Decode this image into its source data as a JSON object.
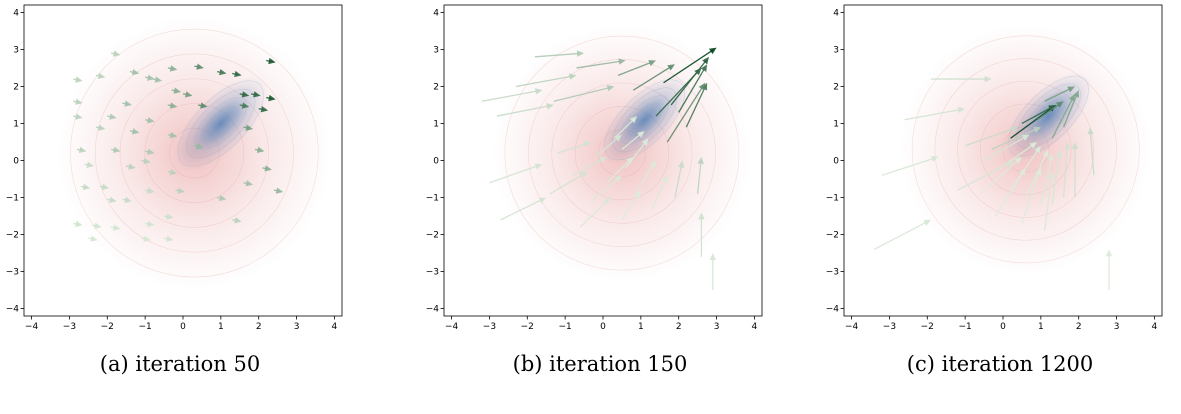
{
  "chart_data": [
    {
      "type": "quiver",
      "caption": "(a) iteration 50",
      "xlim": [
        -4.2,
        4.2
      ],
      "ylim": [
        -4.2,
        4.2
      ],
      "xticks": [
        -4,
        -3,
        -2,
        -1,
        0,
        1,
        2,
        3,
        4
      ],
      "yticks": [
        -4,
        -3,
        -2,
        -1,
        0,
        1,
        2,
        3,
        4
      ],
      "grid": false,
      "densities": [
        {
          "name": "",
          "color": "#e07a7a",
          "mean": [
            0.3,
            0.2
          ],
          "spread": 3.6
        },
        {
          "name": "",
          "color": "#3a73b0",
          "mean": [
            1.0,
            1.0
          ],
          "spread": 1.6
        }
      ],
      "arrows": [
        {
          "x": -1.9,
          "y": 2.9,
          "dx": 0.25,
          "dy": -0.05,
          "w": 0.2
        },
        {
          "x": -2.9,
          "y": 2.2,
          "dx": 0.25,
          "dy": -0.05,
          "w": 0.2
        },
        {
          "x": -2.3,
          "y": 2.3,
          "dx": 0.25,
          "dy": -0.05,
          "w": 0.2
        },
        {
          "x": -1.4,
          "y": 2.4,
          "dx": 0.25,
          "dy": -0.05,
          "w": 0.3
        },
        {
          "x": -1.0,
          "y": 2.25,
          "dx": 0.25,
          "dy": -0.05,
          "w": 0.3
        },
        {
          "x": -0.8,
          "y": 2.2,
          "dx": 0.25,
          "dy": -0.05,
          "w": 0.3
        },
        {
          "x": -0.4,
          "y": 2.5,
          "dx": 0.25,
          "dy": -0.05,
          "w": 0.4
        },
        {
          "x": 0.3,
          "y": 2.55,
          "dx": 0.25,
          "dy": -0.05,
          "w": 0.6
        },
        {
          "x": 0.9,
          "y": 2.4,
          "dx": 0.25,
          "dy": -0.05,
          "w": 0.7
        },
        {
          "x": 1.3,
          "y": 2.35,
          "dx": 0.25,
          "dy": -0.05,
          "w": 0.8
        },
        {
          "x": 2.2,
          "y": 2.7,
          "dx": 0.25,
          "dy": -0.05,
          "w": 0.9
        },
        {
          "x": -0.3,
          "y": 1.9,
          "dx": 0.25,
          "dy": -0.05,
          "w": 0.4
        },
        {
          "x": 0.0,
          "y": 1.8,
          "dx": 0.25,
          "dy": -0.05,
          "w": 0.5
        },
        {
          "x": 1.5,
          "y": 1.8,
          "dx": 0.25,
          "dy": -0.05,
          "w": 0.8
        },
        {
          "x": 1.8,
          "y": 1.8,
          "dx": 0.25,
          "dy": -0.05,
          "w": 0.8
        },
        {
          "x": 2.2,
          "y": 1.7,
          "dx": 0.25,
          "dy": -0.05,
          "w": 0.9
        },
        {
          "x": -2.9,
          "y": 1.6,
          "dx": 0.25,
          "dy": -0.05,
          "w": 0.2
        },
        {
          "x": -1.6,
          "y": 1.55,
          "dx": 0.25,
          "dy": -0.05,
          "w": 0.3
        },
        {
          "x": -0.4,
          "y": 1.5,
          "dx": 0.25,
          "dy": -0.05,
          "w": 0.4
        },
        {
          "x": 0.4,
          "y": 1.5,
          "dx": 0.25,
          "dy": -0.05,
          "w": 0.6
        },
        {
          "x": 1.5,
          "y": 1.5,
          "dx": 0.25,
          "dy": -0.05,
          "w": 0.7
        },
        {
          "x": 2.0,
          "y": 1.4,
          "dx": 0.25,
          "dy": -0.05,
          "w": 0.8
        },
        {
          "x": -2.9,
          "y": 1.2,
          "dx": 0.25,
          "dy": -0.05,
          "w": 0.2
        },
        {
          "x": -2.0,
          "y": 1.2,
          "dx": 0.25,
          "dy": -0.05,
          "w": 0.25
        },
        {
          "x": -1.0,
          "y": 1.1,
          "dx": 0.25,
          "dy": -0.05,
          "w": 0.3
        },
        {
          "x": -2.3,
          "y": 0.9,
          "dx": 0.25,
          "dy": -0.05,
          "w": 0.2
        },
        {
          "x": -1.4,
          "y": 0.8,
          "dx": 0.25,
          "dy": -0.05,
          "w": 0.3
        },
        {
          "x": -0.4,
          "y": 0.7,
          "dx": 0.25,
          "dy": -0.05,
          "w": 0.3
        },
        {
          "x": 1.6,
          "y": 0.9,
          "dx": 0.25,
          "dy": -0.05,
          "w": 0.5
        },
        {
          "x": -2.8,
          "y": 0.3,
          "dx": 0.25,
          "dy": -0.05,
          "w": 0.2
        },
        {
          "x": -1.9,
          "y": 0.3,
          "dx": 0.25,
          "dy": -0.05,
          "w": 0.25
        },
        {
          "x": -1.0,
          "y": 0.25,
          "dx": 0.25,
          "dy": -0.05,
          "w": 0.25
        },
        {
          "x": 0.3,
          "y": 0.4,
          "dx": 0.25,
          "dy": -0.05,
          "w": 0.35
        },
        {
          "x": 1.9,
          "y": 0.3,
          "dx": 0.25,
          "dy": -0.05,
          "w": 0.4
        },
        {
          "x": -2.6,
          "y": -0.1,
          "dx": 0.25,
          "dy": -0.05,
          "w": 0.15
        },
        {
          "x": -1.5,
          "y": -0.15,
          "dx": 0.25,
          "dy": -0.05,
          "w": 0.2
        },
        {
          "x": -0.4,
          "y": -0.3,
          "dx": 0.25,
          "dy": -0.05,
          "w": 0.2
        },
        {
          "x": -1.1,
          "y": 0.0,
          "dx": 0.25,
          "dy": -0.05,
          "w": 0.2
        },
        {
          "x": 2.1,
          "y": -0.2,
          "dx": 0.25,
          "dy": -0.05,
          "w": 0.4
        },
        {
          "x": 2.4,
          "y": -0.8,
          "dx": 0.25,
          "dy": -0.05,
          "w": 0.35
        },
        {
          "x": -2.7,
          "y": -0.7,
          "dx": 0.25,
          "dy": -0.05,
          "w": 0.15
        },
        {
          "x": -2.2,
          "y": -0.7,
          "dx": 0.25,
          "dy": -0.05,
          "w": 0.15
        },
        {
          "x": -1.0,
          "y": -0.8,
          "dx": 0.25,
          "dy": -0.05,
          "w": 0.15
        },
        {
          "x": -2.0,
          "y": -1.05,
          "dx": 0.25,
          "dy": -0.05,
          "w": 0.15
        },
        {
          "x": -1.6,
          "y": -1.05,
          "dx": 0.25,
          "dy": -0.05,
          "w": 0.15
        },
        {
          "x": -0.2,
          "y": -0.8,
          "dx": 0.25,
          "dy": -0.05,
          "w": 0.2
        },
        {
          "x": 0.9,
          "y": -1.0,
          "dx": 0.25,
          "dy": -0.05,
          "w": 0.25
        },
        {
          "x": 1.6,
          "y": -0.6,
          "dx": 0.25,
          "dy": -0.05,
          "w": 0.3
        },
        {
          "x": -2.9,
          "y": -1.7,
          "dx": 0.25,
          "dy": -0.05,
          "w": 0.1
        },
        {
          "x": -2.4,
          "y": -1.75,
          "dx": 0.25,
          "dy": -0.05,
          "w": 0.1
        },
        {
          "x": -1.9,
          "y": -1.8,
          "dx": 0.25,
          "dy": -0.05,
          "w": 0.1
        },
        {
          "x": -1.0,
          "y": -1.7,
          "dx": 0.25,
          "dy": -0.05,
          "w": 0.1
        },
        {
          "x": -0.5,
          "y": -1.5,
          "dx": 0.25,
          "dy": -0.05,
          "w": 0.12
        },
        {
          "x": 1.3,
          "y": -1.6,
          "dx": 0.25,
          "dy": -0.05,
          "w": 0.2
        },
        {
          "x": -1.1,
          "y": -2.1,
          "dx": 0.25,
          "dy": -0.05,
          "w": 0.08
        },
        {
          "x": -0.5,
          "y": -2.1,
          "dx": 0.25,
          "dy": -0.05,
          "w": 0.1
        },
        {
          "x": -2.5,
          "y": -2.1,
          "dx": 0.25,
          "dy": -0.05,
          "w": 0.08
        }
      ]
    },
    {
      "type": "quiver",
      "caption": "(b) iteration 150",
      "xlim": [
        -4.2,
        4.2
      ],
      "ylim": [
        -4.2,
        4.2
      ],
      "xticks": [
        -4,
        -3,
        -2,
        -1,
        0,
        1,
        2,
        3,
        4
      ],
      "yticks": [
        -4,
        -3,
        -2,
        -1,
        0,
        1,
        2,
        3,
        4
      ],
      "grid": false,
      "densities": [
        {
          "name": "",
          "color": "#e07a7a",
          "mean": [
            0.5,
            0.2
          ],
          "spread": 3.4
        },
        {
          "name": "",
          "color": "#3a73b0",
          "mean": [
            1.1,
            1.1
          ],
          "spread": 1.5
        }
      ],
      "arrows": [
        {
          "x": 1.6,
          "y": 2.1,
          "dx": 1.4,
          "dy": 0.95,
          "w": 1.0
        },
        {
          "x": 1.8,
          "y": 1.5,
          "dx": 1.0,
          "dy": 1.3,
          "w": 0.85
        },
        {
          "x": 2.0,
          "y": 1.3,
          "dx": 0.75,
          "dy": 1.3,
          "w": 0.75
        },
        {
          "x": 1.4,
          "y": 1.2,
          "dx": 1.2,
          "dy": 1.3,
          "w": 0.8
        },
        {
          "x": 2.2,
          "y": 0.9,
          "dx": 0.55,
          "dy": 1.2,
          "w": 0.7
        },
        {
          "x": 1.7,
          "y": 0.5,
          "dx": 1.0,
          "dy": 1.6,
          "w": 0.6
        },
        {
          "x": 0.8,
          "y": 1.9,
          "dx": 1.1,
          "dy": 0.7,
          "w": 0.6
        },
        {
          "x": 0.4,
          "y": 2.3,
          "dx": 1.0,
          "dy": 0.4,
          "w": 0.5
        },
        {
          "x": -0.7,
          "y": 2.5,
          "dx": 1.3,
          "dy": 0.2,
          "w": 0.35
        },
        {
          "x": -1.8,
          "y": 2.8,
          "dx": 1.3,
          "dy": 0.1,
          "w": 0.25
        },
        {
          "x": -3.2,
          "y": 1.6,
          "dx": 1.6,
          "dy": 0.3,
          "w": 0.15
        },
        {
          "x": -2.3,
          "y": 2.0,
          "dx": 1.6,
          "dy": 0.3,
          "w": 0.2
        },
        {
          "x": -1.3,
          "y": 1.6,
          "dx": 1.6,
          "dy": 0.4,
          "w": 0.25
        },
        {
          "x": -2.8,
          "y": 1.2,
          "dx": 1.5,
          "dy": 0.3,
          "w": 0.15
        },
        {
          "x": 0.3,
          "y": 0.6,
          "dx": 0.6,
          "dy": 0.6,
          "w": 0.05
        },
        {
          "x": 0.5,
          "y": 0.3,
          "dx": 0.6,
          "dy": 0.5,
          "w": 0.05
        },
        {
          "x": -0.2,
          "y": 0.1,
          "dx": 0.7,
          "dy": 0.6,
          "w": 0.08
        },
        {
          "x": -1.2,
          "y": 0.2,
          "dx": 0.9,
          "dy": 0.3,
          "w": 0.1
        },
        {
          "x": 0.6,
          "y": -0.2,
          "dx": 0.6,
          "dy": 0.8,
          "w": 0.05
        },
        {
          "x": -0.8,
          "y": -0.4,
          "dx": 0.9,
          "dy": 0.5,
          "w": 0.08
        },
        {
          "x": 0.1,
          "y": -0.6,
          "dx": 0.7,
          "dy": 0.7,
          "w": 0.05
        },
        {
          "x": -1.4,
          "y": -0.9,
          "dx": 1.0,
          "dy": 0.6,
          "w": 0.1
        },
        {
          "x": -0.3,
          "y": -1.1,
          "dx": 0.8,
          "dy": 0.7,
          "w": 0.06
        },
        {
          "x": 0.9,
          "y": -0.8,
          "dx": 0.5,
          "dy": 0.8,
          "w": 0.05
        },
        {
          "x": 1.3,
          "y": -1.3,
          "dx": 0.4,
          "dy": 0.9,
          "w": 0.06
        },
        {
          "x": 0.5,
          "y": -1.6,
          "dx": 0.5,
          "dy": 0.8,
          "w": 0.05
        },
        {
          "x": -0.6,
          "y": -1.8,
          "dx": 0.8,
          "dy": 0.8,
          "w": 0.07
        },
        {
          "x": 1.9,
          "y": -1.0,
          "dx": 0.2,
          "dy": 1.0,
          "w": 0.15
        },
        {
          "x": 2.5,
          "y": -0.9,
          "dx": 0.1,
          "dy": 1.0,
          "w": 0.2
        },
        {
          "x": 2.6,
          "y": -2.6,
          "dx": 0.0,
          "dy": 1.2,
          "w": 0.12
        },
        {
          "x": 2.9,
          "y": -3.5,
          "dx": 0.0,
          "dy": 1.0,
          "w": 0.08
        },
        {
          "x": -2.7,
          "y": -1.6,
          "dx": 1.2,
          "dy": 0.6,
          "w": 0.1
        },
        {
          "x": -3.0,
          "y": -0.6,
          "dx": 1.4,
          "dy": 0.5,
          "w": 0.1
        }
      ]
    },
    {
      "type": "quiver",
      "caption": "(c) iteration 1200",
      "xlim": [
        -4.2,
        4.2
      ],
      "ylim": [
        -4.2,
        4.2
      ],
      "xticks": [
        -4,
        -3,
        -2,
        -1,
        0,
        1,
        2,
        3,
        4
      ],
      "yticks": [
        -4,
        -3,
        -2,
        -1,
        0,
        1,
        2,
        3,
        4
      ],
      "grid": false,
      "densities": [
        {
          "name": "",
          "color": "#e07a7a",
          "mean": [
            0.6,
            0.3
          ],
          "spread": 3.3
        },
        {
          "name": "",
          "color": "#3a73b0",
          "mean": [
            1.2,
            1.2
          ],
          "spread": 1.5
        }
      ],
      "arrows": [
        {
          "x": 0.2,
          "y": 0.6,
          "dx": 1.2,
          "dy": 0.9,
          "w": 1.0
        },
        {
          "x": 0.5,
          "y": 1.0,
          "dx": 0.9,
          "dy": 0.5,
          "w": 0.8
        },
        {
          "x": 0.9,
          "y": 1.1,
          "dx": 0.7,
          "dy": 0.5,
          "w": 0.6
        },
        {
          "x": 1.1,
          "y": 1.6,
          "dx": 0.8,
          "dy": 0.4,
          "w": 0.5
        },
        {
          "x": 1.3,
          "y": 0.6,
          "dx": 0.6,
          "dy": 1.2,
          "w": 0.45
        },
        {
          "x": 1.6,
          "y": 0.9,
          "dx": 0.4,
          "dy": 1.0,
          "w": 0.45
        },
        {
          "x": -0.3,
          "y": 0.3,
          "dx": 1.3,
          "dy": 0.6,
          "w": 0.2
        },
        {
          "x": -1.0,
          "y": 0.4,
          "dx": 1.4,
          "dy": 0.5,
          "w": 0.15
        },
        {
          "x": -0.5,
          "y": 0.0,
          "dx": 1.2,
          "dy": 0.7,
          "w": 0.08
        },
        {
          "x": -0.2,
          "y": -0.3,
          "dx": 1.1,
          "dy": 0.8,
          "w": 0.05
        },
        {
          "x": 0.2,
          "y": -0.8,
          "dx": 0.8,
          "dy": 1.2,
          "w": 0.05
        },
        {
          "x": 0.6,
          "y": -1.0,
          "dx": 0.6,
          "dy": 1.3,
          "w": 0.05
        },
        {
          "x": 1.0,
          "y": -1.2,
          "dx": 0.3,
          "dy": 1.4,
          "w": 0.06
        },
        {
          "x": 1.3,
          "y": -1.2,
          "dx": 0.2,
          "dy": 1.5,
          "w": 0.08
        },
        {
          "x": 1.6,
          "y": -1.0,
          "dx": 0.1,
          "dy": 1.5,
          "w": 0.1
        },
        {
          "x": 1.9,
          "y": -1.0,
          "dx": 0.0,
          "dy": 1.5,
          "w": 0.12
        },
        {
          "x": -0.6,
          "y": -0.9,
          "dx": 1.1,
          "dy": 1.0,
          "w": 0.05
        },
        {
          "x": -1.2,
          "y": -0.8,
          "dx": 1.5,
          "dy": 0.8,
          "w": 0.08
        },
        {
          "x": -0.2,
          "y": -1.5,
          "dx": 0.8,
          "dy": 1.3,
          "w": 0.05
        },
        {
          "x": 0.5,
          "y": -1.7,
          "dx": 0.5,
          "dy": 1.5,
          "w": 0.05
        },
        {
          "x": 1.1,
          "y": -1.9,
          "dx": 0.2,
          "dy": 1.6,
          "w": 0.07
        },
        {
          "x": -2.6,
          "y": 1.1,
          "dx": 1.6,
          "dy": 0.3,
          "w": 0.1
        },
        {
          "x": -1.9,
          "y": 2.2,
          "dx": 1.6,
          "dy": 0.0,
          "w": 0.12
        },
        {
          "x": -3.2,
          "y": -0.4,
          "dx": 1.5,
          "dy": 0.5,
          "w": 0.08
        },
        {
          "x": -3.4,
          "y": -2.4,
          "dx": 1.5,
          "dy": 0.8,
          "w": 0.08
        },
        {
          "x": 2.8,
          "y": -3.5,
          "dx": 0.0,
          "dy": 1.1,
          "w": 0.06
        },
        {
          "x": 2.4,
          "y": -0.4,
          "dx": -0.1,
          "dy": 1.3,
          "w": 0.15
        }
      ]
    }
  ]
}
